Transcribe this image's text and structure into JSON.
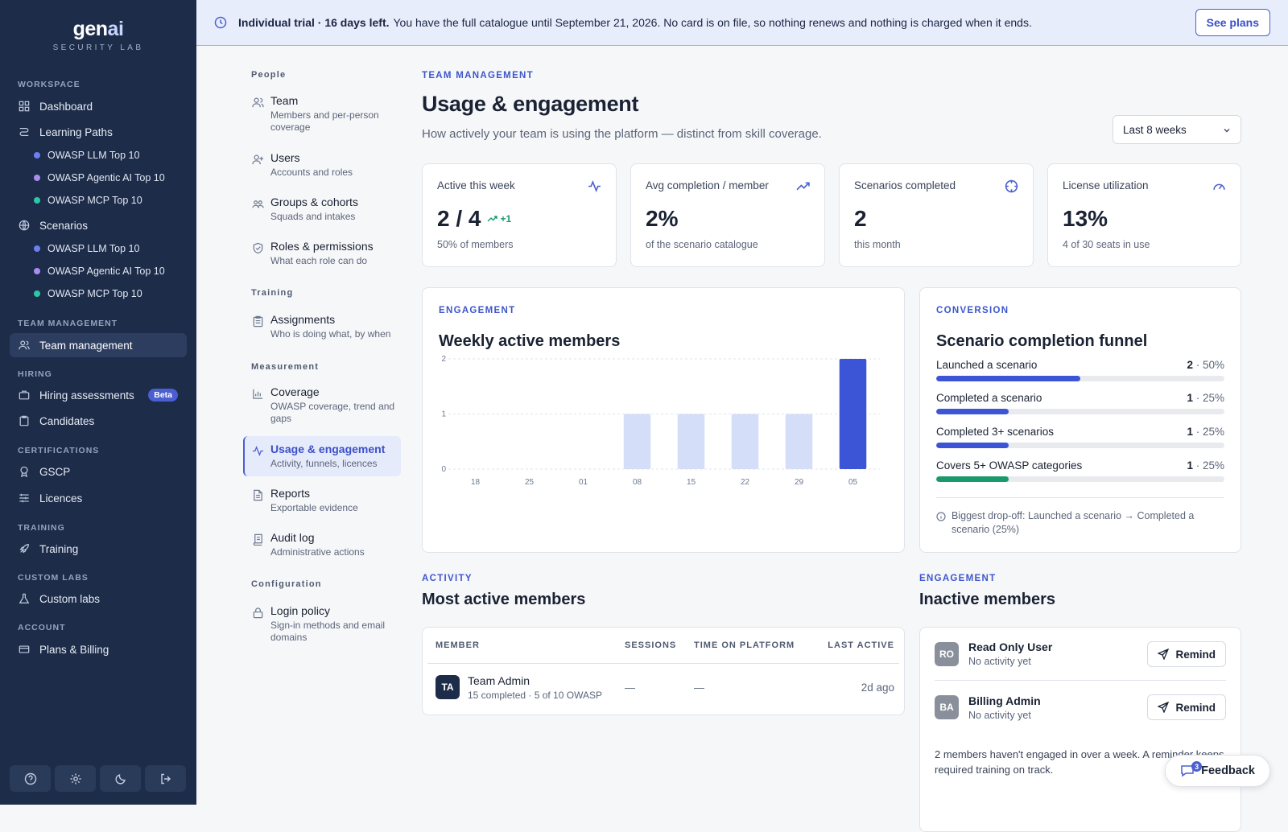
{
  "brand": {
    "name_a": "gen",
    "name_b": "ai",
    "tagline": "SECURITY LAB"
  },
  "sidebar": {
    "sections": {
      "workspace": "Workspace",
      "team": "Team management",
      "hiring": "Hiring",
      "certs": "Certifications",
      "training": "Training",
      "custom": "Custom labs",
      "account": "Account"
    },
    "dashboard": "Dashboard",
    "learning_paths": "Learning Paths",
    "lp_items": [
      "OWASP LLM Top 10",
      "OWASP Agentic AI Top 10",
      "OWASP MCP Top 10"
    ],
    "scenarios": "Scenarios",
    "sc_items": [
      "OWASP LLM Top 10",
      "OWASP Agentic AI Top 10",
      "OWASP MCP Top 10"
    ],
    "team_management": "Team management",
    "hiring_assessments": "Hiring assessments",
    "beta": "Beta",
    "candidates": "Candidates",
    "gscp": "GSCP",
    "licences": "Licences",
    "training": "Training",
    "custom_labs": "Custom labs",
    "plans_billing": "Plans & Billing",
    "dot_colors": [
      "#6d7ff0",
      "#a98cf0",
      "#2cc7a6"
    ]
  },
  "banner": {
    "strong": "Individual trial · 16 days left.",
    "text": "You have the full catalogue until September 21, 2026. No card is on file, so nothing renews and nothing is charged when it ends.",
    "cta": "See plans"
  },
  "subnav": {
    "people": "People",
    "training": "Training",
    "measurement": "Measurement",
    "configuration": "Configuration",
    "items": [
      {
        "t": "Team",
        "d": "Members and per-person coverage"
      },
      {
        "t": "Users",
        "d": "Accounts and roles"
      },
      {
        "t": "Groups & cohorts",
        "d": "Squads and intakes"
      },
      {
        "t": "Roles & permissions",
        "d": "What each role can do"
      },
      {
        "t": "Assignments",
        "d": "Who is doing what, by when"
      },
      {
        "t": "Coverage",
        "d": "OWASP coverage, trend and gaps"
      },
      {
        "t": "Usage & engagement",
        "d": "Activity, funnels, licences"
      },
      {
        "t": "Reports",
        "d": "Exportable evidence"
      },
      {
        "t": "Audit log",
        "d": "Administrative actions"
      },
      {
        "t": "Login policy",
        "d": "Sign-in methods and email domains"
      }
    ]
  },
  "header": {
    "eyebrow": "TEAM MANAGEMENT",
    "title": "Usage & engagement",
    "lead": "How actively your team is using the platform — distinct from skill coverage.",
    "range": "Last 8 weeks"
  },
  "kpis": [
    {
      "label": "Active this week",
      "value": "2 / 4",
      "delta": "+1",
      "sub": "50% of members",
      "icon": "activity-icon"
    },
    {
      "label": "Avg completion / member",
      "value": "2%",
      "sub": "of the scenario catalogue",
      "icon": "trending-up-icon"
    },
    {
      "label": "Scenarios completed",
      "value": "2",
      "sub": "this month",
      "icon": "target-icon"
    },
    {
      "label": "License utilization",
      "value": "13%",
      "sub": "4 of 30 seats in use",
      "icon": "gauge-icon"
    }
  ],
  "engagement": {
    "eyebrow": "ENGAGEMENT",
    "title": "Weekly active members"
  },
  "chart_data": {
    "type": "bar",
    "categories": [
      "18",
      "25",
      "01",
      "08",
      "15",
      "22",
      "29",
      "05"
    ],
    "values": [
      0,
      0,
      0,
      1,
      1,
      1,
      1,
      2
    ],
    "ylim": [
      0,
      2
    ],
    "yticks": [
      "0",
      "1",
      "2"
    ],
    "colors": {
      "past": "#d5def8",
      "current": "#3b55d6"
    }
  },
  "funnel": {
    "eyebrow": "CONVERSION",
    "title": "Scenario completion funnel",
    "steps": [
      {
        "label": "Launched a scenario",
        "count": "2",
        "pct": "50%",
        "frac": 0.5,
        "color": "#3b55d6"
      },
      {
        "label": "Completed a scenario",
        "count": "1",
        "pct": "25%",
        "frac": 0.25,
        "color": "#3b55d6"
      },
      {
        "label": "Completed 3+ scenarios",
        "count": "1",
        "pct": "25%",
        "frac": 0.25,
        "color": "#3b55d6"
      },
      {
        "label": "Covers 5+ OWASP categories",
        "count": "1",
        "pct": "25%",
        "frac": 0.25,
        "color": "#1a9a6c"
      }
    ],
    "sep": " · ",
    "note": "Biggest drop-off: Launched a scenario → Completed a scenario (25%)"
  },
  "active": {
    "eyebrow": "ACTIVITY",
    "title": "Most active members",
    "cols": [
      "Member",
      "Sessions",
      "Time on platform",
      "Last active"
    ],
    "rows": [
      {
        "initials": "TA",
        "name": "Team Admin",
        "detail": "15 completed · 5 of 10 OWASP",
        "sessions": "—",
        "time": "—",
        "last": "2d ago"
      }
    ]
  },
  "inactive": {
    "eyebrow": "ENGAGEMENT",
    "title": "Inactive members",
    "rows": [
      {
        "initials": "RO",
        "name": "Read Only User",
        "status": "No activity yet",
        "action": "Remind"
      },
      {
        "initials": "BA",
        "name": "Billing Admin",
        "status": "No activity yet",
        "action": "Remind"
      }
    ],
    "footer": "2 members haven't engaged in over a week. A reminder keeps required training on track."
  },
  "feedback": {
    "label": "Feedback",
    "count": "3"
  }
}
